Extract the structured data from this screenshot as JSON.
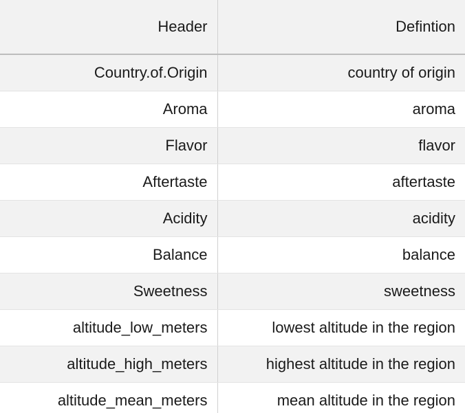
{
  "table": {
    "headers": [
      "Header",
      "Defintion"
    ],
    "rows": [
      [
        "Country.of.Origin",
        "country of origin"
      ],
      [
        "Aroma",
        "aroma"
      ],
      [
        "Flavor",
        "flavor"
      ],
      [
        "Aftertaste",
        "aftertaste"
      ],
      [
        "Acidity",
        "acidity"
      ],
      [
        "Balance",
        "balance"
      ],
      [
        "Sweetness",
        "sweetness"
      ],
      [
        "altitude_low_meters",
        "lowest altitude in the region"
      ],
      [
        "altitude_high_meters",
        "highest altitude in the region"
      ],
      [
        "altitude_mean_meters",
        "mean altitude in the region"
      ]
    ]
  }
}
